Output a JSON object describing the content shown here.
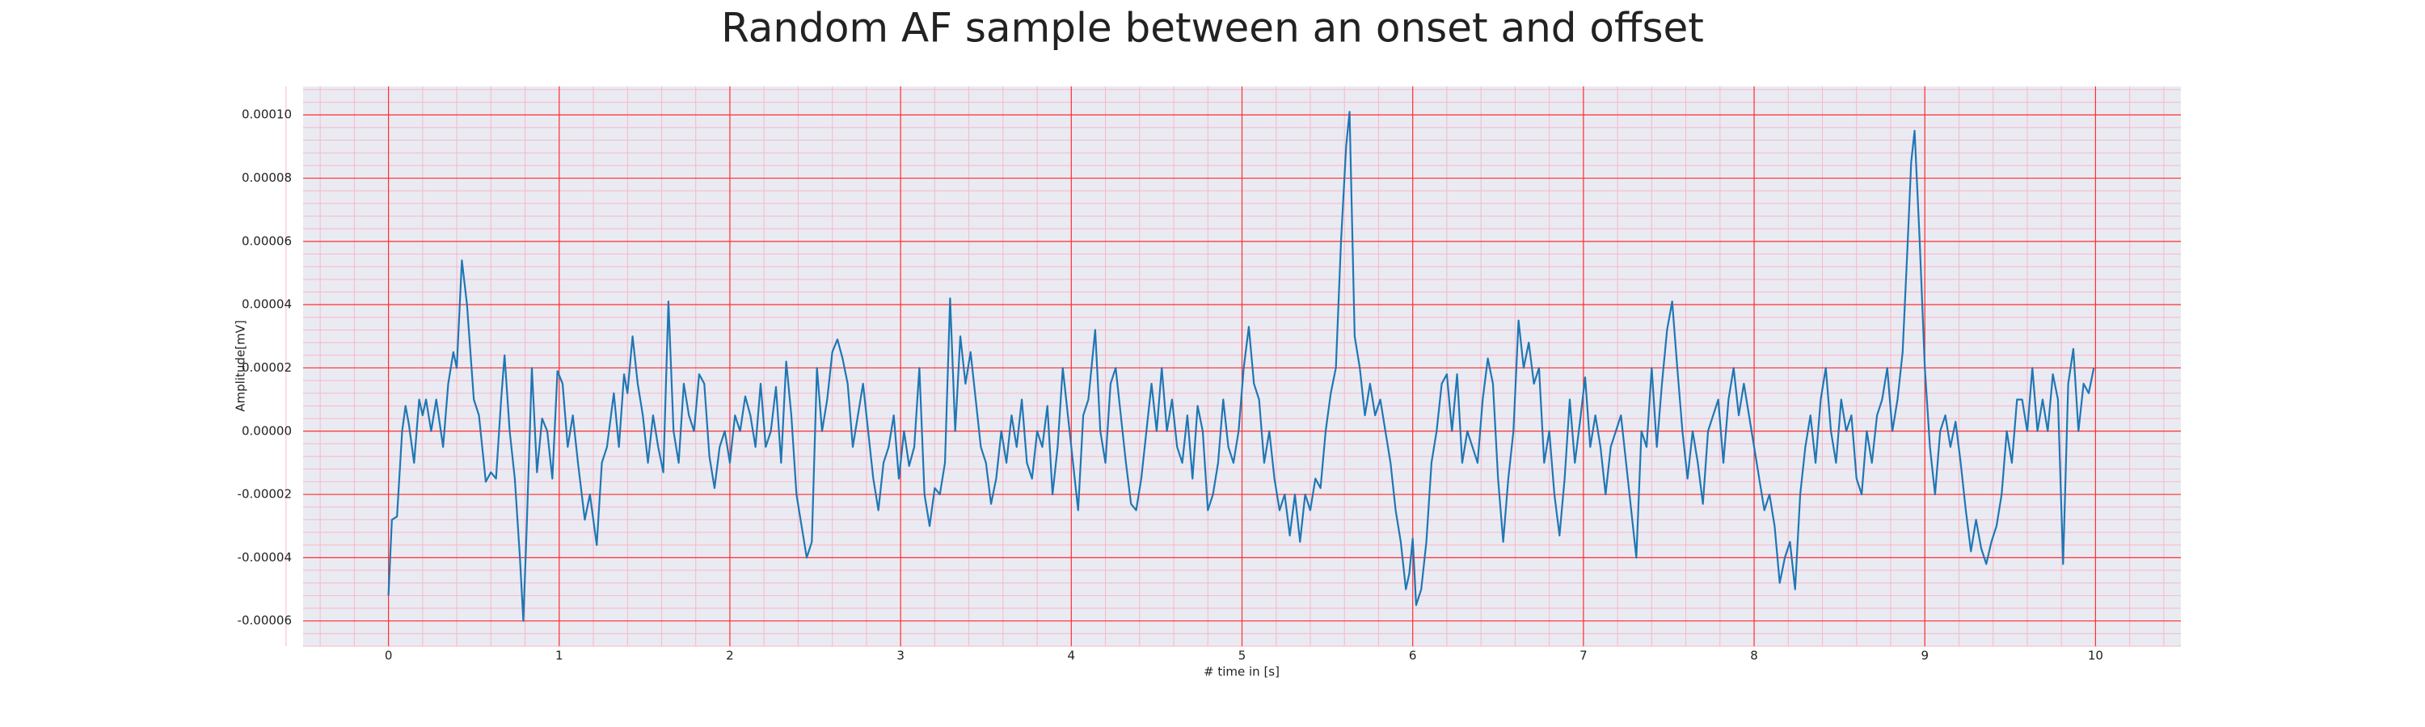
{
  "chart_data": {
    "type": "line",
    "title": "Random AF sample between an onset and offset",
    "xlabel": "# time in [s]",
    "ylabel": "Amplitude[mV]",
    "color": "#1f77b4",
    "grid": true,
    "grid_color": "#ff3030",
    "minor_grid": true,
    "minor_grid_color": "#f6b8c8",
    "xlim": [
      -0.5,
      10.5
    ],
    "xticks": [
      0,
      1,
      2,
      3,
      4,
      5,
      6,
      7,
      8,
      9,
      10
    ],
    "ylim": [
      -6.8e-05,
      0.000109
    ],
    "yticks": [
      {
        "value": -6e-05,
        "label": "-0.00006"
      },
      {
        "value": -4e-05,
        "label": "-0.00004"
      },
      {
        "value": -2e-05,
        "label": "-0.00002"
      },
      {
        "value": 0,
        "label": "0.00000"
      },
      {
        "value": 2e-05,
        "label": "0.00002"
      },
      {
        "value": 4e-05,
        "label": "0.00004"
      },
      {
        "value": 6e-05,
        "label": "0.00006"
      },
      {
        "value": 8e-05,
        "label": "0.00008"
      },
      {
        "value": 0.0001,
        "label": "0.00010"
      }
    ],
    "x": [
      0,
      0.02,
      0.05,
      0.08,
      0.1,
      0.12,
      0.15,
      0.18,
      0.2,
      0.22,
      0.25,
      0.28,
      0.32,
      0.35,
      0.38,
      0.4,
      0.43,
      0.46,
      0.5,
      0.53,
      0.57,
      0.6,
      0.63,
      0.66,
      0.68,
      0.71,
      0.74,
      0.77,
      0.79,
      0.81,
      0.84,
      0.87,
      0.9,
      0.93,
      0.96,
      0.99,
      1.02,
      1.05,
      1.08,
      1.11,
      1.15,
      1.18,
      1.22,
      1.25,
      1.28,
      1.32,
      1.35,
      1.38,
      1.4,
      1.43,
      1.46,
      1.49,
      1.52,
      1.55,
      1.58,
      1.61,
      1.64,
      1.67,
      1.7,
      1.73,
      1.76,
      1.79,
      1.82,
      1.85,
      1.88,
      1.91,
      1.94,
      1.97,
      2.0,
      2.03,
      2.06,
      2.09,
      2.12,
      2.15,
      2.18,
      2.21,
      2.24,
      2.27,
      2.3,
      2.33,
      2.36,
      2.39,
      2.42,
      2.45,
      2.48,
      2.51,
      2.54,
      2.57,
      2.6,
      2.63,
      2.66,
      2.69,
      2.72,
      2.75,
      2.78,
      2.81,
      2.84,
      2.87,
      2.9,
      2.93,
      2.96,
      2.99,
      3.02,
      3.05,
      3.08,
      3.11,
      3.14,
      3.17,
      3.2,
      3.23,
      3.26,
      3.29,
      3.32,
      3.35,
      3.38,
      3.41,
      3.44,
      3.47,
      3.5,
      3.53,
      3.56,
      3.59,
      3.62,
      3.65,
      3.68,
      3.71,
      3.74,
      3.77,
      3.8,
      3.83,
      3.86,
      3.89,
      3.92,
      3.95,
      3.98,
      4.01,
      4.04,
      4.07,
      4.1,
      4.14,
      4.17,
      4.2,
      4.23,
      4.26,
      4.29,
      4.32,
      4.35,
      4.38,
      4.41,
      4.44,
      4.47,
      4.5,
      4.53,
      4.56,
      4.59,
      4.62,
      4.65,
      4.68,
      4.71,
      4.74,
      4.77,
      4.8,
      4.83,
      4.86,
      4.89,
      4.92,
      4.95,
      4.98,
      5.01,
      5.04,
      5.07,
      5.1,
      5.13,
      5.16,
      5.19,
      5.22,
      5.25,
      5.28,
      5.31,
      5.34,
      5.37,
      5.4,
      5.43,
      5.46,
      5.49,
      5.52,
      5.55,
      5.58,
      5.61,
      5.63,
      5.66,
      5.69,
      5.72,
      5.75,
      5.78,
      5.81,
      5.84,
      5.87,
      5.9,
      5.93,
      5.96,
      5.98,
      6.0,
      6.02,
      6.05,
      6.08,
      6.11,
      6.14,
      6.17,
      6.2,
      6.23,
      6.26,
      6.29,
      6.32,
      6.35,
      6.38,
      6.41,
      6.44,
      6.47,
      6.5,
      6.53,
      6.56,
      6.59,
      6.62,
      6.65,
      6.68,
      6.71,
      6.74,
      6.77,
      6.8,
      6.83,
      6.86,
      6.89,
      6.92,
      6.95,
      6.98,
      7.01,
      7.04,
      7.07,
      7.1,
      7.13,
      7.16,
      7.19,
      7.22,
      7.25,
      7.28,
      7.31,
      7.34,
      7.37,
      7.4,
      7.43,
      7.46,
      7.49,
      7.52,
      7.55,
      7.58,
      7.61,
      7.64,
      7.67,
      7.7,
      7.73,
      7.76,
      7.79,
      7.82,
      7.85,
      7.88,
      7.91,
      7.94,
      7.97,
      8.0,
      8.03,
      8.06,
      8.09,
      8.12,
      8.15,
      8.18,
      8.21,
      8.24,
      8.27,
      8.3,
      8.33,
      8.36,
      8.39,
      8.42,
      8.45,
      8.48,
      8.51,
      8.54,
      8.57,
      8.6,
      8.63,
      8.66,
      8.69,
      8.72,
      8.75,
      8.78,
      8.81,
      8.84,
      8.87,
      8.9,
      8.92,
      8.94,
      8.97,
      9.0,
      9.03,
      9.06,
      9.09,
      9.12,
      9.15,
      9.18,
      9.21,
      9.24,
      9.27,
      9.3,
      9.33,
      9.36,
      9.39,
      9.42,
      9.45,
      9.48,
      9.51,
      9.54,
      9.57,
      9.6,
      9.63,
      9.66,
      9.69,
      9.72,
      9.75,
      9.78,
      9.81,
      9.84,
      9.87,
      9.9,
      9.93,
      9.96,
      9.99
    ],
    "values": [
      -5.2e-05,
      -2.8e-05,
      -2.7e-05,
      0,
      8e-06,
      2e-06,
      -1e-05,
      1e-05,
      5e-06,
      1e-05,
      0,
      1e-05,
      -5e-06,
      1.5e-05,
      2.5e-05,
      2e-05,
      5.4e-05,
      4e-05,
      1e-05,
      5e-06,
      -1.6e-05,
      -1.3e-05,
      -1.5e-05,
      1e-05,
      2.4e-05,
      0,
      -1.5e-05,
      -4e-05,
      -6e-05,
      -3e-05,
      2e-05,
      -1.3e-05,
      4e-06,
      0,
      -1.5e-05,
      1.9e-05,
      1.5e-05,
      -5e-06,
      5e-06,
      -1e-05,
      -2.8e-05,
      -2e-05,
      -3.6e-05,
      -1e-05,
      -5e-06,
      1.2e-05,
      -5e-06,
      1.8e-05,
      1.2e-05,
      3e-05,
      1.5e-05,
      5e-06,
      -1e-05,
      5e-06,
      -5e-06,
      -1.3e-05,
      4.1e-05,
      0,
      -1e-05,
      1.5e-05,
      5e-06,
      0,
      1.8e-05,
      1.5e-05,
      -8e-06,
      -1.8e-05,
      -5e-06,
      0,
      -1e-05,
      5e-06,
      0,
      1.1e-05,
      5e-06,
      -5e-06,
      1.5e-05,
      -5e-06,
      0,
      1.4e-05,
      -1e-05,
      2.2e-05,
      5e-06,
      -2e-05,
      -3e-05,
      -4e-05,
      -3.5e-05,
      2e-05,
      0,
      1e-05,
      2.5e-05,
      2.9e-05,
      2.3e-05,
      1.5e-05,
      -5e-06,
      5e-06,
      1.5e-05,
      0,
      -1.5e-05,
      -2.5e-05,
      -1e-05,
      -5e-06,
      5e-06,
      -1.5e-05,
      0,
      -1.1e-05,
      -5e-06,
      2e-05,
      -2e-05,
      -3e-05,
      -1.8e-05,
      -2e-05,
      -1e-05,
      4.2e-05,
      0,
      3e-05,
      1.5e-05,
      2.5e-05,
      1e-05,
      -5e-06,
      -1e-05,
      -2.3e-05,
      -1.5e-05,
      0,
      -1e-05,
      5e-06,
      -5e-06,
      1e-05,
      -1e-05,
      -1.5e-05,
      0,
      -5e-06,
      8e-06,
      -2e-05,
      -5e-06,
      2e-05,
      5e-06,
      -1e-05,
      -2.5e-05,
      5e-06,
      1e-05,
      3.2e-05,
      0,
      -1e-05,
      1.5e-05,
      2e-05,
      5e-06,
      -1e-05,
      -2.3e-05,
      -2.5e-05,
      -1.5e-05,
      0,
      1.5e-05,
      0,
      2e-05,
      0,
      1e-05,
      -5e-06,
      -1e-05,
      5e-06,
      -1.5e-05,
      8e-06,
      0,
      -2.5e-05,
      -2e-05,
      -1e-05,
      1e-05,
      -5e-06,
      -1e-05,
      0,
      2e-05,
      3.3e-05,
      1.5e-05,
      1e-05,
      -1e-05,
      0,
      -1.5e-05,
      -2.5e-05,
      -2e-05,
      -3.3e-05,
      -2e-05,
      -3.5e-05,
      -2e-05,
      -2.5e-05,
      -1.5e-05,
      -1.8e-05,
      0,
      1.2e-05,
      2e-05,
      6e-05,
      9e-05,
      0.000101,
      3e-05,
      2e-05,
      5e-06,
      1.5e-05,
      5e-06,
      1e-05,
      0,
      -1e-05,
      -2.5e-05,
      -3.5e-05,
      -5e-05,
      -4.5e-05,
      -3.4e-05,
      -5.5e-05,
      -5e-05,
      -3.5e-05,
      -1e-05,
      0,
      1.5e-05,
      1.8e-05,
      0,
      1.8e-05,
      -1e-05,
      0,
      -5e-06,
      -1e-05,
      1e-05,
      2.3e-05,
      1.5e-05,
      -1.5e-05,
      -3.5e-05,
      -1.5e-05,
      0,
      3.5e-05,
      2e-05,
      2.8e-05,
      1.5e-05,
      2e-05,
      -1e-05,
      0,
      -2e-05,
      -3.3e-05,
      -1.5e-05,
      1e-05,
      -1e-05,
      3e-06,
      1.7e-05,
      -5e-06,
      5e-06,
      -5e-06,
      -2e-05,
      -5e-06,
      0,
      5e-06,
      -1e-05,
      -2.5e-05,
      -4e-05,
      0,
      -5e-06,
      2e-05,
      -5e-06,
      1.5e-05,
      3.2e-05,
      4.1e-05,
      2e-05,
      0,
      -1.5e-05,
      0,
      -1e-05,
      -2.3e-05,
      0,
      5e-06,
      1e-05,
      -1e-05,
      1e-05,
      2e-05,
      5e-06,
      1.5e-05,
      5e-06,
      -5e-06,
      -1.5e-05,
      -2.5e-05,
      -2e-05,
      -3e-05,
      -4.8e-05,
      -4e-05,
      -3.5e-05,
      -5e-05,
      -2e-05,
      -5e-06,
      5e-06,
      -1e-05,
      1e-05,
      2e-05,
      0,
      -1e-05,
      1e-05,
      0,
      5e-06,
      -1.5e-05,
      -2e-05,
      0,
      -1e-05,
      5e-06,
      1e-05,
      2e-05,
      0,
      1e-05,
      2.5e-05,
      6e-05,
      8.5e-05,
      9.5e-05,
      6e-05,
      2e-05,
      -5e-06,
      -2e-05,
      0,
      5e-06,
      -5e-06,
      3e-06,
      -1e-05,
      -2.5e-05,
      -3.8e-05,
      -2.8e-05,
      -3.7e-05,
      -4.2e-05,
      -3.5e-05,
      -3e-05,
      -2e-05,
      0,
      -1e-05,
      1e-05,
      1e-05,
      0,
      2e-05,
      0,
      1e-05,
      0,
      1.8e-05,
      1e-05,
      -4.2e-05,
      1.5e-05,
      2.6e-05,
      0,
      1.5e-05,
      1.2e-05,
      2e-05
    ]
  }
}
